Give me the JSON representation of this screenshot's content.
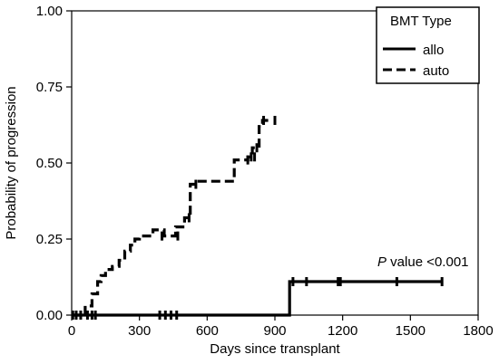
{
  "chart_data": {
    "type": "line",
    "title": "",
    "xlabel": "Days since transplant",
    "ylabel": "Probability of progression",
    "xlim": [
      0,
      1800
    ],
    "ylim": [
      0,
      1.0
    ],
    "xticks": [
      0,
      300,
      600,
      900,
      1200,
      1500,
      1800
    ],
    "yticks": [
      0.0,
      0.25,
      0.5,
      0.75,
      1.0
    ],
    "xtick_labels": [
      "0",
      "300",
      "600",
      "900",
      "1200",
      "1500",
      "1800"
    ],
    "ytick_labels": [
      "0.00",
      "0.25",
      "0.50",
      "0.75",
      "1.00"
    ],
    "legend": {
      "title": "BMT Type",
      "position": "top-right",
      "entries": [
        {
          "label": "allo",
          "style": "solid"
        },
        {
          "label": "auto",
          "style": "dashed"
        }
      ]
    },
    "annotation": {
      "italic": "P",
      "text": " value <0.001"
    },
    "series": [
      {
        "name": "allo",
        "style": "solid",
        "color": "#000000",
        "step_x": [
          0,
          965,
          965,
          1640
        ],
        "step_y": [
          0,
          0,
          0.11,
          0.11
        ],
        "censor_x": [
          5,
          20,
          40,
          70,
          90,
          105,
          390,
          415,
          440,
          465,
          980,
          1040,
          1180,
          1190,
          1440,
          1640
        ],
        "censor_y": [
          0,
          0,
          0,
          0,
          0,
          0,
          0,
          0,
          0,
          0,
          0.11,
          0.11,
          0.11,
          0.11,
          0.11,
          0.11
        ]
      },
      {
        "name": "auto",
        "style": "dashed",
        "color": "#000000",
        "step_x": [
          0,
          60,
          60,
          90,
          90,
          115,
          115,
          130,
          130,
          150,
          150,
          180,
          180,
          210,
          210,
          235,
          235,
          260,
          260,
          280,
          280,
          300,
          300,
          360,
          360,
          410,
          410,
          460,
          460,
          500,
          500,
          525,
          525,
          555,
          555,
          620,
          620,
          720,
          720,
          780,
          780,
          800,
          800,
          830,
          830,
          845,
          845,
          880
        ],
        "step_y": [
          0,
          0,
          0.03,
          0.03,
          0.07,
          0.07,
          0.11,
          0.11,
          0.13,
          0.13,
          0.15,
          0.15,
          0.16,
          0.16,
          0.18,
          0.18,
          0.21,
          0.21,
          0.23,
          0.23,
          0.25,
          0.25,
          0.26,
          0.26,
          0.28,
          0.28,
          0.26,
          0.26,
          0.29,
          0.29,
          0.32,
          0.32,
          0.43,
          0.43,
          0.44,
          0.44,
          0.44,
          0.44,
          0.51,
          0.51,
          0.52,
          0.52,
          0.55,
          0.55,
          0.62,
          0.62,
          0.64,
          0.64
        ],
        "censor_x": [
          400,
          470,
          520,
          550,
          780,
          795,
          810,
          820,
          850,
          900
        ],
        "censor_y": [
          0.26,
          0.26,
          0.32,
          0.43,
          0.51,
          0.52,
          0.52,
          0.55,
          0.64,
          0.64
        ]
      }
    ]
  }
}
